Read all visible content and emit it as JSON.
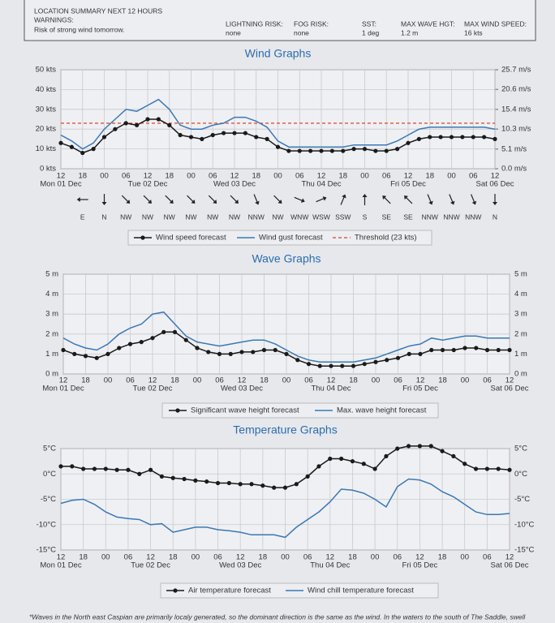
{
  "summary": {
    "title": "LOCATION SUMMARY NEXT 12 HOURS",
    "warnings_label": "WARNINGS:",
    "warnings": "Risk of strong wind tomorrow.",
    "fields": [
      {
        "label": "LIGHTNING RISK:",
        "value": "none"
      },
      {
        "label": "FOG RISK:",
        "value": "none"
      },
      {
        "label": "SST:",
        "value": "1 deg"
      },
      {
        "label": "MAX WAVE HGT:",
        "value": "1.2 m"
      },
      {
        "label": "MAX WIND SPEED:",
        "value": "16 kts"
      }
    ]
  },
  "chart_data": [
    {
      "type": "line",
      "title": "Wind Graphs",
      "categories": [
        "12",
        null,
        "18",
        null,
        "00",
        null,
        "06",
        null,
        "12",
        null,
        "18",
        null,
        "00",
        null,
        "06",
        null,
        "12",
        null,
        "18",
        null,
        "00",
        null,
        "06",
        null,
        "12",
        null,
        "18",
        null,
        "00",
        null,
        "06",
        null,
        "12",
        null,
        "18",
        null,
        "00",
        null,
        "06",
        null,
        "12"
      ],
      "days": [
        "Mon 01 Dec",
        "Tue 02 Dec",
        "Wed 03 Dec",
        "Thu 04 Dec",
        "Fri 05 Dec",
        "Sat 06 Dec"
      ],
      "ylim": [
        0,
        50
      ],
      "yticks": [
        {
          "value": 0,
          "label": "0 kts"
        },
        {
          "value": 10,
          "label": "10 kts"
        },
        {
          "value": 20,
          "label": "20 kts"
        },
        {
          "value": 30,
          "label": "30 kts"
        },
        {
          "value": 40,
          "label": "40 kts"
        },
        {
          "value": 50,
          "label": "50 kts"
        }
      ],
      "y2lim": [
        0,
        25.7
      ],
      "y2ticks": [
        {
          "value": 0,
          "label": "0.0 m/s"
        },
        {
          "value": 5.1,
          "label": "5.1 m/s"
        },
        {
          "value": 10.3,
          "label": "10.3 m/s"
        },
        {
          "value": 15.4,
          "label": "15.4 m/s"
        },
        {
          "value": 20.6,
          "label": "20.6 m/s"
        },
        {
          "value": 25.7,
          "label": "25.7 m/s"
        }
      ],
      "grid": true,
      "series": [
        {
          "name": "Wind speed forecast",
          "color": "#1a1a1a",
          "marker": true,
          "values": [
            13,
            11,
            8,
            10,
            16,
            20,
            23,
            22,
            25,
            25,
            22,
            17,
            16,
            15,
            17,
            18,
            18,
            18,
            16,
            15,
            11,
            9,
            9,
            9,
            9,
            9,
            9,
            10,
            10,
            9,
            9,
            10,
            13,
            15,
            16,
            16,
            16,
            16,
            16,
            16,
            15
          ]
        },
        {
          "name": "Wind gust forecast",
          "color": "#3a78b5",
          "marker": false,
          "values": [
            17,
            14,
            10,
            13,
            20,
            25,
            30,
            29,
            32,
            35,
            30,
            22,
            20,
            20,
            22,
            23,
            26,
            26,
            24,
            21,
            14,
            11,
            11,
            11,
            11,
            11,
            11,
            12,
            12,
            12,
            12,
            14,
            17,
            20,
            21,
            21,
            21,
            21,
            21,
            21,
            20
          ]
        }
      ],
      "threshold": 23,
      "threshold_label": "Threshold (23 kts)",
      "threshold_color": "#d9432b",
      "wind_directions": [
        "E",
        "N",
        "NW",
        "NW",
        "NW",
        "NW",
        "NW",
        "NW",
        "NNW",
        "NW",
        "WNW",
        "WSW",
        "SSW",
        "S",
        "SE",
        "SE",
        "NNW",
        "NNW",
        "NNW",
        "N"
      ]
    },
    {
      "type": "line",
      "title": "Wave Graphs",
      "categories": [
        "12",
        null,
        "18",
        null,
        "00",
        null,
        "06",
        null,
        "12",
        null,
        "18",
        null,
        "00",
        null,
        "06",
        null,
        "12",
        null,
        "18",
        null,
        "00",
        null,
        "06",
        null,
        "12",
        null,
        "18",
        null,
        "00",
        null,
        "06",
        null,
        "12",
        null,
        "18",
        null,
        "00",
        null,
        "06",
        null,
        "12"
      ],
      "days": [
        "Mon 01 Dec",
        "Tue 02 Dec",
        "Wed 03 Dec",
        "Thu 04 Dec",
        "Fri 05 Dec",
        "Sat 06 Dec"
      ],
      "ylim": [
        0,
        5
      ],
      "yticks": [
        {
          "value": 0,
          "label": "0 m"
        },
        {
          "value": 1,
          "label": "1 m"
        },
        {
          "value": 2,
          "label": "2 m"
        },
        {
          "value": 3,
          "label": "3 m"
        },
        {
          "value": 4,
          "label": "4 m"
        },
        {
          "value": 5,
          "label": "5 m"
        }
      ],
      "grid": true,
      "series": [
        {
          "name": "Significant wave height forecast",
          "color": "#1a1a1a",
          "marker": true,
          "values": [
            1.2,
            1.0,
            0.9,
            0.8,
            1.0,
            1.3,
            1.5,
            1.6,
            1.8,
            2.1,
            2.1,
            1.7,
            1.3,
            1.1,
            1.0,
            1.0,
            1.1,
            1.1,
            1.2,
            1.2,
            1.0,
            0.7,
            0.5,
            0.4,
            0.4,
            0.4,
            0.4,
            0.5,
            0.6,
            0.7,
            0.8,
            1.0,
            1.0,
            1.2,
            1.2,
            1.2,
            1.3,
            1.3,
            1.2,
            1.2,
            1.2
          ]
        },
        {
          "name": "Max. wave height forecast",
          "color": "#3a78b5",
          "marker": false,
          "values": [
            1.8,
            1.5,
            1.3,
            1.2,
            1.5,
            2.0,
            2.3,
            2.5,
            3.0,
            3.1,
            2.5,
            1.9,
            1.6,
            1.5,
            1.4,
            1.5,
            1.6,
            1.7,
            1.7,
            1.5,
            1.2,
            0.9,
            0.7,
            0.6,
            0.6,
            0.6,
            0.6,
            0.7,
            0.8,
            1.0,
            1.2,
            1.4,
            1.5,
            1.8,
            1.7,
            1.8,
            1.9,
            1.9,
            1.8,
            1.8,
            1.8
          ]
        }
      ]
    },
    {
      "type": "line",
      "title": "Temperature Graphs",
      "categories": [
        "12",
        null,
        "18",
        null,
        "00",
        null,
        "06",
        null,
        "12",
        null,
        "18",
        null,
        "00",
        null,
        "06",
        null,
        "12",
        null,
        "18",
        null,
        "00",
        null,
        "06",
        null,
        "12",
        null,
        "18",
        null,
        "00",
        null,
        "06",
        null,
        "12",
        null,
        "18",
        null,
        "00",
        null,
        "06",
        null,
        "12"
      ],
      "days": [
        "Mon 01 Dec",
        "Tue 02 Dec",
        "Wed 03 Dec",
        "Thu 04 Dec",
        "Fri 05 Dec",
        "Sat 06 Dec"
      ],
      "ylim": [
        -15,
        5
      ],
      "yticks": [
        {
          "value": -15,
          "label": "-15°C"
        },
        {
          "value": -10,
          "label": "-10°C"
        },
        {
          "value": -5,
          "label": "-5°C"
        },
        {
          "value": 0,
          "label": "0°C"
        },
        {
          "value": 5,
          "label": "5°C"
        }
      ],
      "grid": true,
      "series": [
        {
          "name": "Air temperature forecast",
          "color": "#1a1a1a",
          "marker": true,
          "values": [
            1.5,
            1.5,
            1,
            1,
            1,
            0.8,
            0.8,
            0,
            0.8,
            -0.5,
            -0.8,
            -1,
            -1.3,
            -1.5,
            -1.8,
            -1.8,
            -2,
            -2,
            -2.3,
            -2.7,
            -2.7,
            -2,
            -0.5,
            1.5,
            3,
            3,
            2.5,
            2,
            1,
            3.5,
            5,
            5.5,
            5.5,
            5.5,
            4.5,
            3.5,
            2,
            1,
            1,
            1,
            0.8
          ]
        },
        {
          "name": "Wind chill temperature forecast",
          "color": "#3a78b5",
          "marker": false,
          "values": [
            -5.8,
            -5.2,
            -5,
            -6,
            -7.5,
            -8.5,
            -8.8,
            -9,
            -10,
            -9.8,
            -11.5,
            -11,
            -10.5,
            -10.5,
            -11,
            -11.2,
            -11.5,
            -12,
            -12,
            -12,
            -12.5,
            -10.5,
            -9,
            -7.5,
            -5.5,
            -3,
            -3.2,
            -3.8,
            -5,
            -6.5,
            -2.5,
            -1,
            -1.2,
            -2,
            -3.5,
            -4.5,
            -6,
            -7.5,
            -8,
            -8,
            -7.8
          ]
        }
      ]
    }
  ],
  "footnote": "*Waves in the North east Caspian are primarily localy generated, so the dominant direction is the same as the wind. In the waters to the south of The Saddle, swell"
}
